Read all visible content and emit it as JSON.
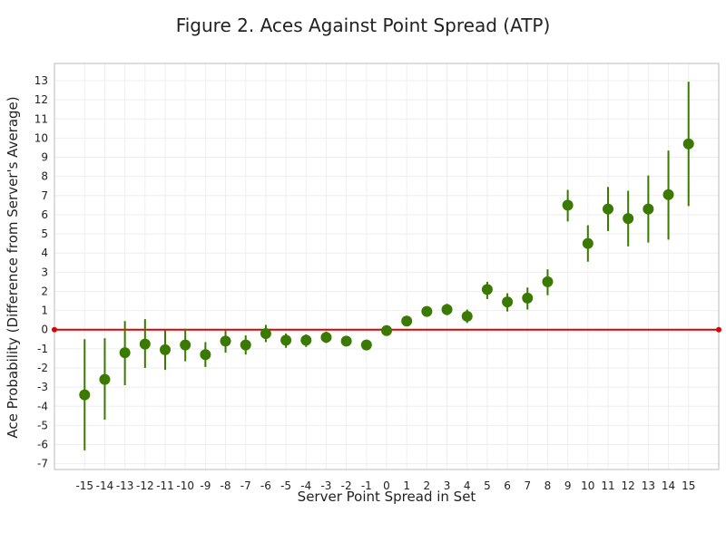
{
  "chart_data": {
    "type": "scatter",
    "title": "Figure 2. Aces Against Point Spread (ATP)",
    "xlabel": "Server Point Spread in Set",
    "ylabel": "Ace Probability (Difference from Server's Average)",
    "xlim": [
      -16.5,
      16.5
    ],
    "ylim": [
      -7.3,
      13.9
    ],
    "xticks": [
      -15,
      -14,
      -13,
      -12,
      -11,
      -10,
      -9,
      -8,
      -7,
      -6,
      -5,
      -4,
      -3,
      -2,
      -1,
      0,
      1,
      2,
      3,
      4,
      5,
      6,
      7,
      8,
      9,
      10,
      11,
      12,
      13,
      14,
      15
    ],
    "yticks": [
      -7,
      -6,
      -5,
      -4,
      -3,
      -2,
      -1,
      0,
      1,
      2,
      3,
      4,
      5,
      6,
      7,
      8,
      9,
      10,
      11,
      12,
      13
    ],
    "grid": true,
    "reference_line": {
      "y": 0,
      "color": "#e00000"
    },
    "marker_color": "#3a7a00",
    "series": [
      {
        "x": [
          -15,
          -14,
          -13,
          -12,
          -11,
          -10,
          -9,
          -8,
          -7,
          -6,
          -5,
          -4,
          -3,
          -2,
          -1,
          0,
          1,
          2,
          3,
          4,
          5,
          6,
          7,
          8,
          9,
          10,
          11,
          12,
          13,
          14,
          15
        ],
        "y": [
          -3.4,
          -2.6,
          -1.2,
          -0.75,
          -1.05,
          -0.8,
          -1.3,
          -0.6,
          -0.8,
          -0.2,
          -0.55,
          -0.55,
          -0.4,
          -0.6,
          -0.8,
          -0.05,
          0.45,
          0.95,
          1.05,
          0.7,
          2.1,
          1.45,
          1.65,
          2.5,
          6.5,
          4.5,
          6.3,
          5.8,
          6.3,
          7.05,
          9.7
        ],
        "err_low": [
          -6.3,
          -4.7,
          -2.9,
          -2.0,
          -2.1,
          -1.65,
          -1.95,
          -1.2,
          -1.3,
          -0.65,
          -0.95,
          -0.9,
          -0.7,
          -0.85,
          -0.95,
          -0.2,
          0.3,
          0.75,
          0.75,
          0.35,
          1.6,
          0.95,
          1.05,
          1.8,
          5.65,
          3.55,
          5.15,
          4.35,
          4.55,
          4.7,
          6.45
        ],
        "err_high": [
          -0.5,
          -0.45,
          0.45,
          0.55,
          -0.05,
          0.05,
          -0.65,
          -0.05,
          -0.3,
          0.25,
          -0.2,
          -0.25,
          -0.1,
          -0.35,
          -0.65,
          0.1,
          0.65,
          1.15,
          1.35,
          1.05,
          2.5,
          1.9,
          2.2,
          3.15,
          7.3,
          5.45,
          7.45,
          7.25,
          8.05,
          9.35,
          12.95
        ]
      }
    ]
  }
}
